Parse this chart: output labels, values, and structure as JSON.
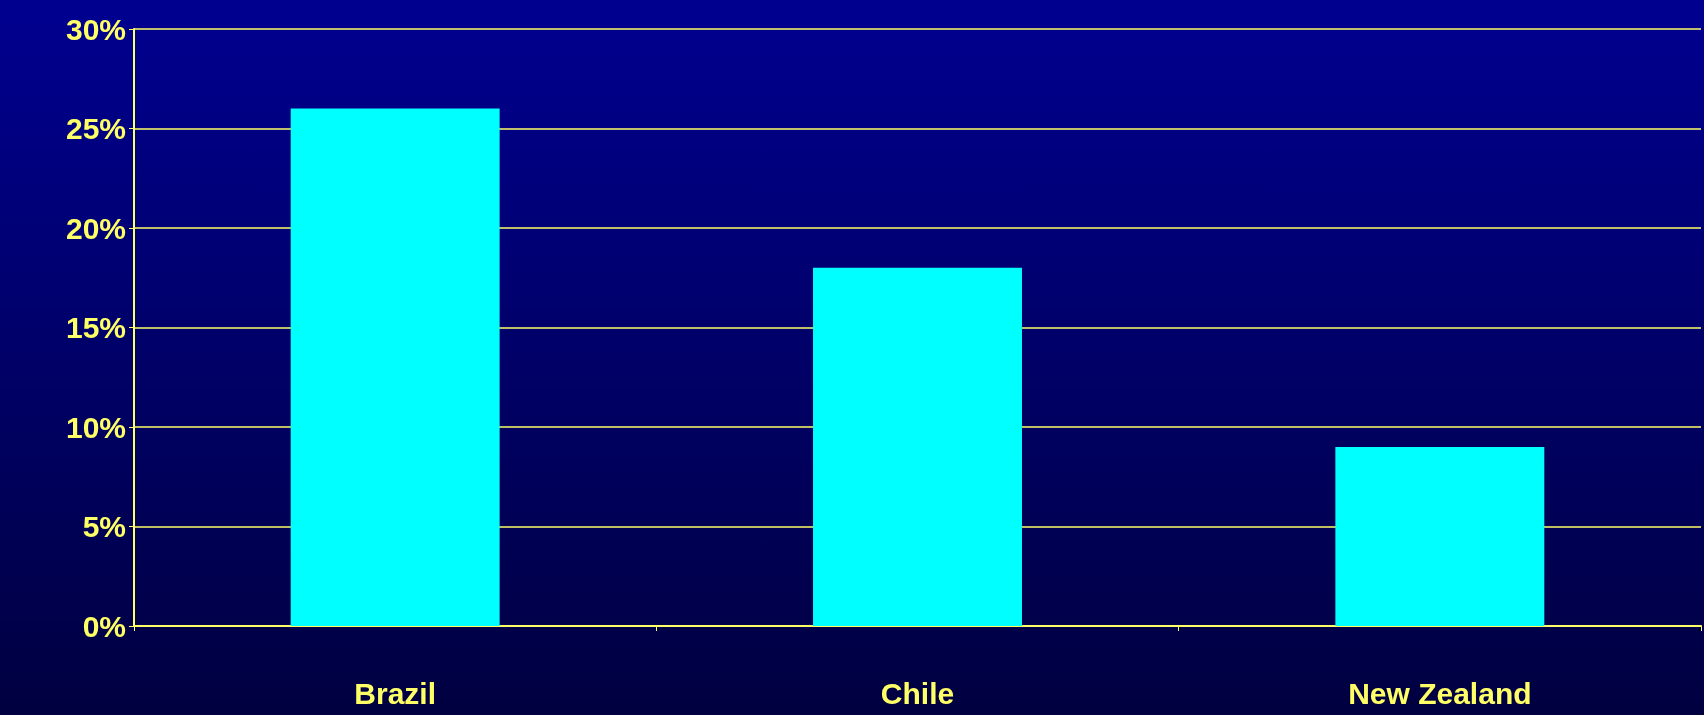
{
  "chart_data": {
    "type": "bar",
    "categories": [
      "Brazil",
      "Chile",
      "New Zealand"
    ],
    "values": [
      26,
      18,
      9
    ],
    "color": "#00ffff",
    "ylim": [
      0,
      30
    ],
    "yticks": [
      {
        "value": 0,
        "label": "0%"
      },
      {
        "value": 5,
        "label": "5%"
      },
      {
        "value": 10,
        "label": "10%"
      },
      {
        "value": 15,
        "label": "15%"
      },
      {
        "value": 20,
        "label": "20%"
      },
      {
        "value": 25,
        "label": "25%"
      },
      {
        "value": 30,
        "label": "30%"
      }
    ],
    "grid": "y"
  }
}
